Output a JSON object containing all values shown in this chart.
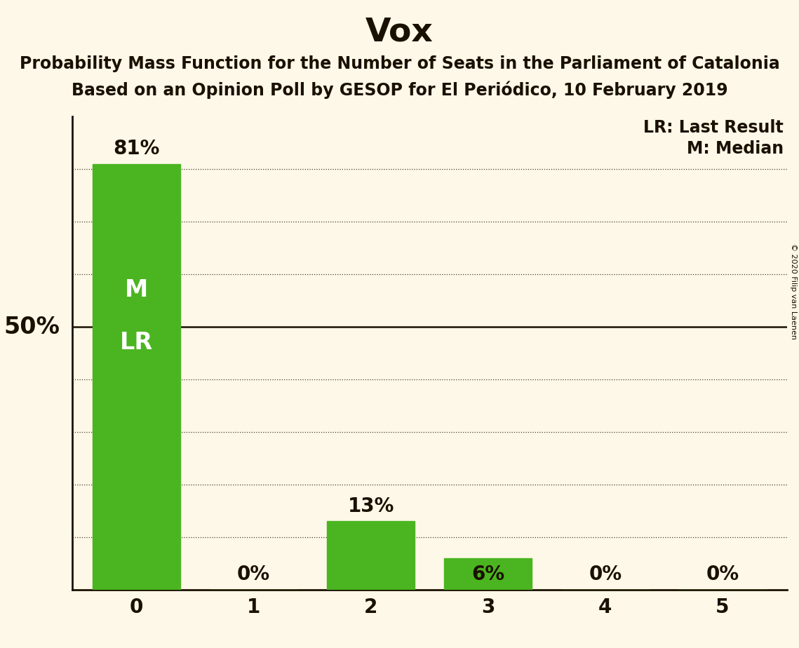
{
  "title": "Vox",
  "subtitle1": "Probability Mass Function for the Number of Seats in the Parliament of Catalonia",
  "subtitle2": "Based on an Opinion Poll by GESOP for El Periódico, 10 February 2019",
  "copyright": "© 2020 Filip van Laenen",
  "categories": [
    0,
    1,
    2,
    3,
    4,
    5
  ],
  "values": [
    0.81,
    0.0,
    0.13,
    0.06,
    0.0,
    0.0
  ],
  "bar_color": "#4ab520",
  "background_color": "#fdf8e8",
  "text_color": "#1a1000",
  "ylabel_text": "50%",
  "fifty_pct_line": 0.5,
  "legend_lr": "LR: Last Result",
  "legend_m": "M: Median",
  "bar_labels": [
    "81%",
    "0%",
    "13%",
    "6%",
    "0%",
    "0%"
  ],
  "inside_labels": [
    "M",
    "LR"
  ],
  "ylim": [
    0,
    0.9
  ],
  "dotted_lines": [
    0.8,
    0.7,
    0.6,
    0.4,
    0.3,
    0.2,
    0.1
  ],
  "title_fontsize": 34,
  "subtitle_fontsize": 17,
  "label_fontsize": 20,
  "tick_fontsize": 20,
  "inside_label_fontsize": 24,
  "ylabel_fontsize": 24
}
